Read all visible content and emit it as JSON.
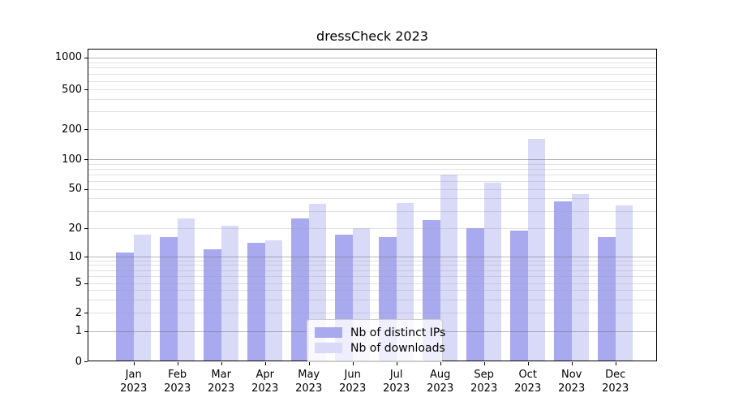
{
  "title": "dressCheck 2023",
  "legend": {
    "items": [
      {
        "label": "Nb of distinct IPs",
        "color": "#a9a9ef"
      },
      {
        "label": "Nb of downloads",
        "color": "#d9d9f8"
      }
    ]
  },
  "y_axis": {
    "tick_labels": [
      "0",
      "1",
      "2",
      "5",
      "10",
      "20",
      "50",
      "100",
      "200",
      "500",
      "1000"
    ]
  },
  "x_axis": {
    "year_line": "2023",
    "months": [
      "Jan",
      "Feb",
      "Mar",
      "Apr",
      "May",
      "Jun",
      "Jul",
      "Aug",
      "Sep",
      "Oct",
      "Nov",
      "Dec"
    ]
  },
  "chart_data": {
    "type": "bar",
    "title": "dressCheck 2023",
    "categories": [
      "Jan 2023",
      "Feb 2023",
      "Mar 2023",
      "Apr 2023",
      "May 2023",
      "Jun 2023",
      "Jul 2023",
      "Aug 2023",
      "Sep 2023",
      "Oct 2023",
      "Nov 2023",
      "Dec 2023"
    ],
    "series": [
      {
        "name": "Nb of distinct IPs",
        "color": "#a9a9ef",
        "values": [
          11,
          16,
          12,
          14,
          25,
          17,
          16,
          24,
          20,
          19,
          37,
          16
        ]
      },
      {
        "name": "Nb of downloads",
        "color": "#d9d9f8",
        "values": [
          17,
          25,
          21,
          15,
          35,
          20,
          36,
          70,
          58,
          160,
          44,
          34
        ]
      }
    ],
    "xlabel": "",
    "ylabel": "",
    "yscale": "symlog",
    "yticks": [
      0,
      1,
      2,
      5,
      10,
      20,
      50,
      100,
      200,
      500,
      1000
    ],
    "ylim": [
      0,
      1400
    ],
    "grid": "both, horizontal only, drawn above bars",
    "legend_position": "lower center"
  }
}
